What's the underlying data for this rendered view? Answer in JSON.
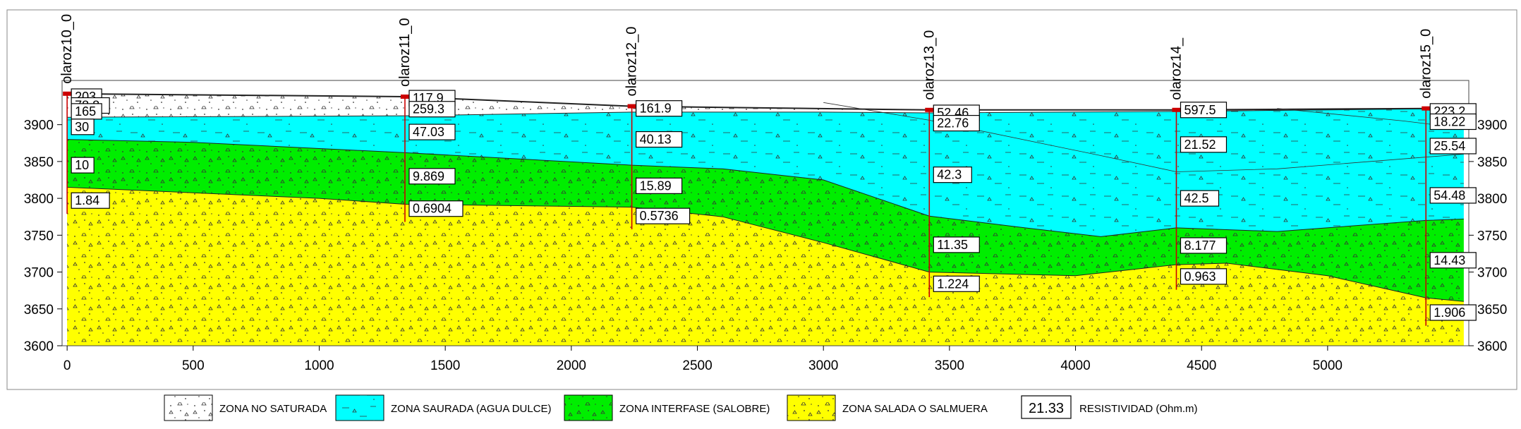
{
  "boreholes": [
    {
      "name": "olaroz10_0",
      "distance": 0,
      "top": 3942,
      "values": [
        {
          "v": "203",
          "elev": 3938
        },
        {
          "v": "78.8",
          "elev": 3926
        },
        {
          "v": "165",
          "elev": 3918
        },
        {
          "v": "30",
          "elev": 3897
        },
        {
          "v": "10",
          "elev": 3845
        },
        {
          "v": "1.84",
          "elev": 3797
        }
      ]
    },
    {
      "name": "olaroz11_0",
      "distance": 1340,
      "top": 3938,
      "values": [
        {
          "v": "117.9",
          "elev": 3936
        },
        {
          "v": "259.3",
          "elev": 3921
        },
        {
          "v": "47.03",
          "elev": 3890
        },
        {
          "v": "9.869",
          "elev": 3830
        },
        {
          "v": "0.6904",
          "elev": 3786
        }
      ]
    },
    {
      "name": "olaroz12_0",
      "distance": 2240,
      "top": 3925,
      "values": [
        {
          "v": "161.9",
          "elev": 3922
        },
        {
          "v": "40.13",
          "elev": 3880
        },
        {
          "v": "15.89",
          "elev": 3817
        },
        {
          "v": "0.5736",
          "elev": 3776
        }
      ]
    },
    {
      "name": "olaroz13_0",
      "distance": 3420,
      "top": 3920,
      "values": [
        {
          "v": "52.46",
          "elev": 3916
        },
        {
          "v": "22.76",
          "elev": 3902
        },
        {
          "v": "42.3",
          "elev": 3832
        },
        {
          "v": "11.35",
          "elev": 3737
        },
        {
          "v": "1.224",
          "elev": 3684
        }
      ]
    },
    {
      "name": "olaroz14_",
      "distance": 4400,
      "top": 3920,
      "values": [
        {
          "v": "597.5",
          "elev": 3920
        },
        {
          "v": "21.52",
          "elev": 3873
        },
        {
          "v": "42.5",
          "elev": 3800
        },
        {
          "v": "8.177",
          "elev": 3736
        },
        {
          "v": "0.963",
          "elev": 3694
        }
      ]
    },
    {
      "name": "olaroz15_0",
      "distance": 5390,
      "top": 3922,
      "values": [
        {
          "v": "223.2",
          "elev": 3918
        },
        {
          "v": "18.22",
          "elev": 3904
        },
        {
          "v": "25.54",
          "elev": 3871
        },
        {
          "v": "54.48",
          "elev": 3804
        },
        {
          "v": "14.43",
          "elev": 3716
        },
        {
          "v": "1.906",
          "elev": 3645
        }
      ]
    }
  ],
  "axes": {
    "x_ticks": [
      0,
      500,
      1000,
      1500,
      2000,
      2500,
      3000,
      3500,
      4000,
      4500,
      5000
    ],
    "y_ticks": [
      3600,
      3650,
      3700,
      3750,
      3800,
      3850,
      3900
    ],
    "x_range": [
      -20,
      5560
    ],
    "y_range": [
      3600,
      3960
    ]
  },
  "layers": {
    "surface": [
      [
        0,
        3942
      ],
      [
        1340,
        3938
      ],
      [
        2240,
        3925
      ],
      [
        3420,
        3920
      ],
      [
        4400,
        3920
      ],
      [
        5390,
        3922
      ],
      [
        5540,
        3922
      ]
    ],
    "base_no_saturada": [
      [
        0,
        3910
      ],
      [
        1340,
        3912
      ],
      [
        2240,
        3917
      ],
      [
        3000,
        3917
      ],
      [
        3420,
        3916
      ],
      [
        4400,
        3918
      ],
      [
        5540,
        3922
      ]
    ],
    "base_dulce": [
      [
        0,
        3880
      ],
      [
        500,
        3876
      ],
      [
        1340,
        3862
      ],
      [
        2240,
        3845
      ],
      [
        2600,
        3840
      ],
      [
        3000,
        3825
      ],
      [
        3420,
        3776
      ],
      [
        3800,
        3760
      ],
      [
        4100,
        3748
      ],
      [
        4400,
        3760
      ],
      [
        4800,
        3755
      ],
      [
        5390,
        3770
      ],
      [
        5540,
        3772
      ]
    ],
    "base_interfase": [
      [
        0,
        3815
      ],
      [
        1000,
        3800
      ],
      [
        1340,
        3792
      ],
      [
        2240,
        3788
      ],
      [
        2600,
        3775
      ],
      [
        3000,
        3740
      ],
      [
        3420,
        3700
      ],
      [
        4000,
        3695
      ],
      [
        4400,
        3710
      ],
      [
        4600,
        3712
      ],
      [
        5000,
        3695
      ],
      [
        5390,
        3665
      ],
      [
        5540,
        3660
      ]
    ],
    "bottom": [
      [
        0,
        3600
      ],
      [
        5540,
        3600
      ]
    ],
    "internal_line_1": [
      [
        3000,
        3930
      ],
      [
        3420,
        3906
      ],
      [
        4100,
        3858
      ],
      [
        4400,
        3836
      ],
      [
        4800,
        3840
      ],
      [
        5540,
        3860
      ]
    ],
    "internal_line_2": [
      [
        4800,
        3922
      ],
      [
        5300,
        3905
      ],
      [
        5540,
        3895
      ]
    ]
  },
  "colors": {
    "no_saturada": "#ffffff",
    "dulce": "#00ffff",
    "interfase": "#00ee00",
    "salada": "#ffff00",
    "borehole": "#cc0000"
  },
  "legend": [
    {
      "label": "ZONA NO SATURADA",
      "fill": "#ffffff",
      "pattern": "dots"
    },
    {
      "label": "ZONA SAURADA (AGUA DULCE)",
      "fill": "#00ffff",
      "pattern": "dash"
    },
    {
      "label": "ZONA INTERFASE (SALOBRE)",
      "fill": "#00ee00",
      "pattern": "dots"
    },
    {
      "label": "ZONA SALADA O SALMUERA",
      "fill": "#ffff00",
      "pattern": "dots"
    },
    {
      "label": "RESISTIVIDAD (Ohm.m)",
      "sample": "21.33"
    }
  ]
}
